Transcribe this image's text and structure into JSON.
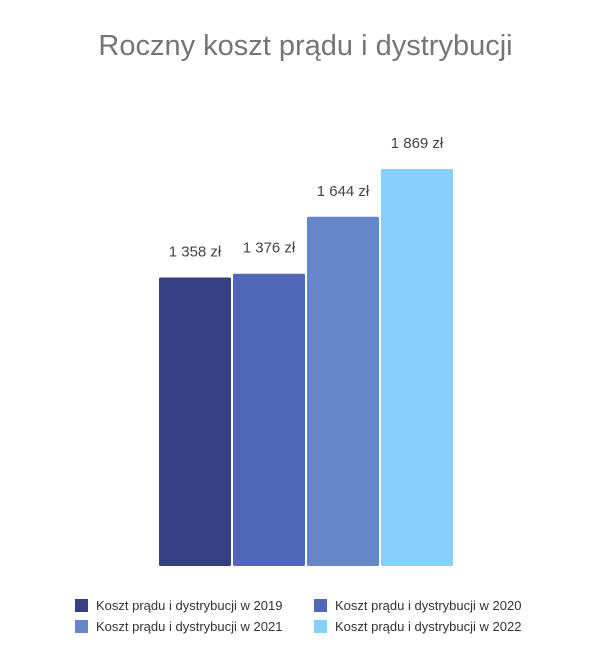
{
  "chart_data": {
    "type": "bar",
    "title": "Roczny koszt prądu i dystrybucji",
    "xlabel": "",
    "ylabel": "",
    "ylim": [
      0,
      2000
    ],
    "grid": false,
    "legend_position": "bottom",
    "series": [
      {
        "name": "Koszt prądu i dystrybucji w 2019",
        "value": 1358,
        "label": "1 358 zł",
        "color": "#353f84"
      },
      {
        "name": "Koszt prądu i dystrybucji w 2020",
        "value": 1376,
        "label": "1 376 zł",
        "color": "#5167b8"
      },
      {
        "name": "Koszt prądu i dystrybucji w 2021",
        "value": 1644,
        "label": "1 644 zł",
        "color": "#6587c9"
      },
      {
        "name": "Koszt prądu i dystrybucji w 2022",
        "value": 1869,
        "label": "1 869 zł",
        "color": "#86cffa"
      }
    ]
  }
}
